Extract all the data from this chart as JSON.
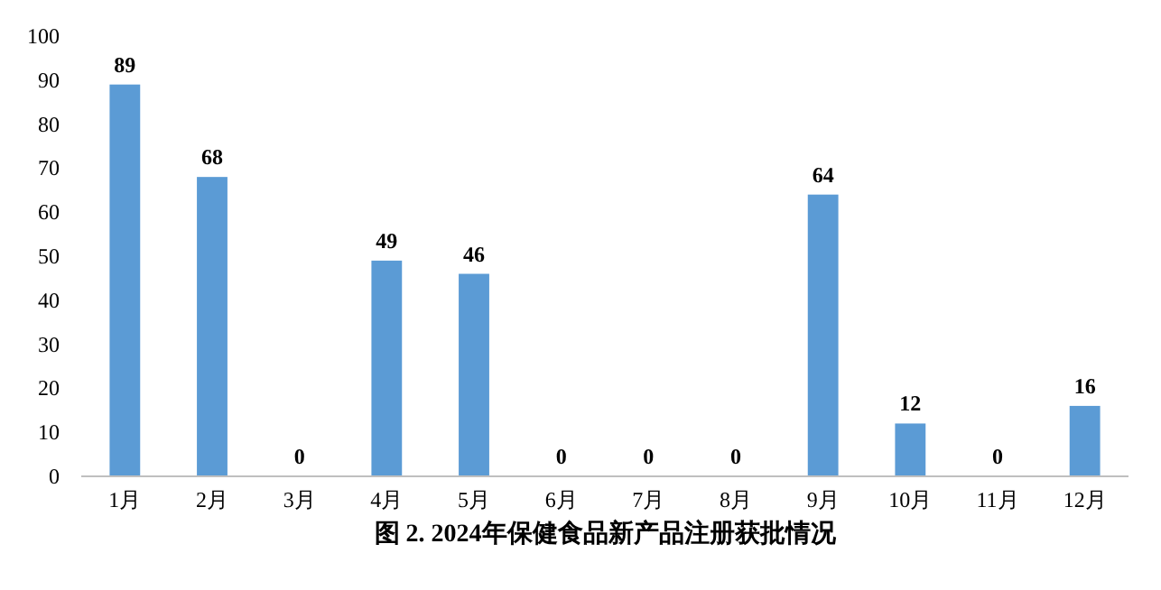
{
  "chart_data": {
    "type": "bar",
    "title": "图 2. 2024年保健食品新产品注册获批情况",
    "categories": [
      "1月",
      "2月",
      "3月",
      "4月",
      "5月",
      "6月",
      "7月",
      "8月",
      "9月",
      "10月",
      "11月",
      "12月"
    ],
    "values": [
      89,
      68,
      0,
      49,
      46,
      0,
      0,
      0,
      64,
      12,
      0,
      16
    ],
    "color": "#5b9bd5",
    "ylim": [
      0,
      100
    ],
    "yticks": [
      0,
      10,
      20,
      30,
      40,
      50,
      60,
      70,
      80,
      90,
      100
    ],
    "data_labels": true,
    "grid": false
  }
}
